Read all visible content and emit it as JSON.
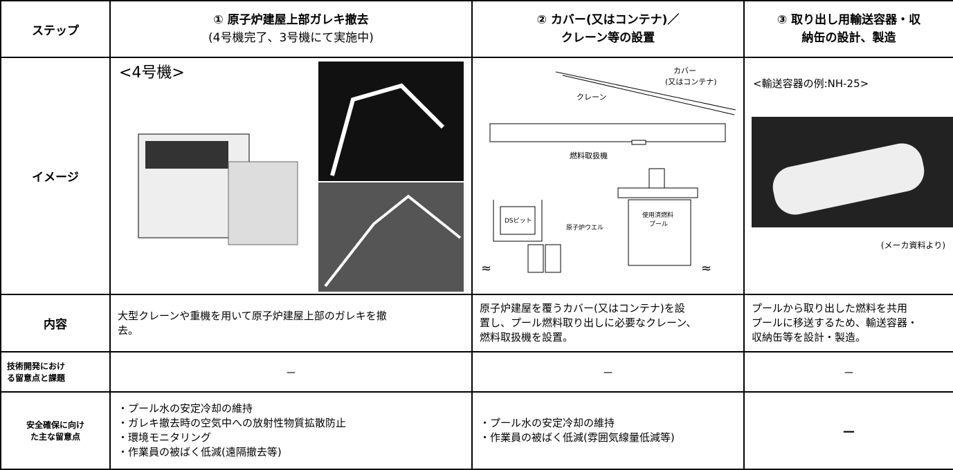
{
  "table": {
    "header": {
      "label": "ステップ",
      "steps": [
        {
          "lines": [
            "① 原子炉建屋上部ガレキ撤去",
            "(4号機完了、3号機にて実施中)"
          ]
        },
        {
          "lines": [
            "② カバー(又はコンテナ)／",
            "クレーン等の設置"
          ]
        },
        {
          "lines": [
            "③ 取り出し用輸送容器・収",
            "納缶の設計、製造"
          ]
        }
      ]
    },
    "image_row": {
      "label": "イメージ",
      "step1": {
        "caption": "<4号機>"
      },
      "step2": {
        "cover": "カバー",
        "cover_note": "(又はコンテナ)",
        "crane": "クレーン",
        "fuel_handler": "燃料取扱機",
        "ds_pit": "DSピット",
        "reactor_well": "原子炉ウエル",
        "pool": [
          "使用済燃料",
          "プール"
        ],
        "wave": "≈"
      },
      "step3": {
        "caption": "<輸送容器の例:NH-25>",
        "source": "(メーカ資料より)"
      }
    },
    "content_row": {
      "label": "内容",
      "cells": [
        [
          "大型クレーンや重機を用いて原子炉建屋上部のガレキを撤",
          "去。"
        ],
        [
          "原子炉建屋を覆うカバー(又はコンテナ)を設",
          "置し、プール燃料取り出しに必要なクレーン、",
          "燃料取扱機を設置。"
        ],
        [
          "プールから取り出した燃料を共用",
          "プールに移送するため、輸送容器・",
          "収納缶等を設計・製造。"
        ]
      ]
    },
    "tech_row": {
      "label": [
        "技術開発におけ",
        "る留意点と課題"
      ],
      "cells": [
        "－",
        "－",
        "－"
      ]
    },
    "safety_row": {
      "label": [
        "安全確保に向け",
        "た主な留意点"
      ],
      "cells": [
        [
          "・プール水の安定冷却の維持",
          "・ガレキ撤去時の空気中への放射性物質拡散防止",
          "・環境モニタリング",
          "・作業員の被ばく低減(遠隔撤去等)"
        ],
        [
          "・プール水の安定冷却の維持",
          "・作業員の被ばく低減(雰囲気線量低減等)"
        ],
        [
          "－"
        ]
      ]
    }
  }
}
